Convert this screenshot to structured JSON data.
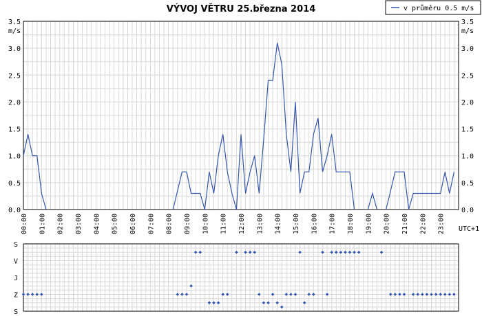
{
  "chart_data": [
    {
      "type": "line",
      "title": "VÝVOJ VĚTRU  25.března 2014",
      "ylabel": "m/s",
      "xlabel": "UTC+1",
      "ylim": [
        0,
        3.5
      ],
      "yticks": [
        "0.0",
        "0.5",
        "1.0",
        "1.5",
        "2.0",
        "2.5",
        "3.0",
        "3.5"
      ],
      "xticks": [
        "00:00",
        "01:00",
        "02:00",
        "03:00",
        "04:00",
        "05:00",
        "06:00",
        "07:00",
        "08:00",
        "09:00",
        "10:00",
        "11:00",
        "12:00",
        "13:00",
        "14:00",
        "15:00",
        "16:00",
        "17:00",
        "18:00",
        "19:00",
        "20:00",
        "21:00",
        "22:00",
        "23:00"
      ],
      "grid": true,
      "legend_position": "top-right",
      "series": [
        {
          "name": "v průměru 0.5 m/s",
          "color": "#3355aa",
          "points": [
            [
              0.0,
              1.0
            ],
            [
              0.25,
              1.4
            ],
            [
              0.5,
              1.0
            ],
            [
              0.75,
              1.0
            ],
            [
              1.0,
              0.3
            ],
            [
              1.25,
              0.0
            ],
            [
              8.25,
              0.0
            ],
            [
              8.5,
              0.35
            ],
            [
              8.75,
              0.7
            ],
            [
              9.0,
              0.7
            ],
            [
              9.25,
              0.3
            ],
            [
              9.5,
              0.3
            ],
            [
              9.75,
              0.3
            ],
            [
              10.0,
              0.0
            ],
            [
              10.25,
              0.7
            ],
            [
              10.5,
              0.3
            ],
            [
              10.75,
              1.0
            ],
            [
              11.0,
              1.4
            ],
            [
              11.25,
              0.7
            ],
            [
              11.5,
              0.3
            ],
            [
              11.75,
              0.0
            ],
            [
              12.0,
              1.4
            ],
            [
              12.25,
              0.3
            ],
            [
              12.5,
              0.7
            ],
            [
              12.75,
              1.0
            ],
            [
              13.0,
              0.3
            ],
            [
              13.25,
              1.3
            ],
            [
              13.5,
              2.4
            ],
            [
              13.75,
              2.4
            ],
            [
              14.0,
              3.1
            ],
            [
              14.25,
              2.7
            ],
            [
              14.5,
              1.4
            ],
            [
              14.75,
              0.7
            ],
            [
              15.0,
              2.0
            ],
            [
              15.25,
              0.3
            ],
            [
              15.5,
              0.7
            ],
            [
              15.75,
              0.7
            ],
            [
              16.0,
              1.4
            ],
            [
              16.25,
              1.7
            ],
            [
              16.5,
              0.7
            ],
            [
              16.75,
              1.0
            ],
            [
              17.0,
              1.4
            ],
            [
              17.25,
              0.7
            ],
            [
              17.5,
              0.7
            ],
            [
              17.75,
              0.7
            ],
            [
              18.0,
              0.7
            ],
            [
              18.25,
              0.0
            ],
            [
              19.0,
              0.0
            ],
            [
              19.25,
              0.3
            ],
            [
              19.5,
              0.0
            ],
            [
              20.0,
              0.0
            ],
            [
              20.25,
              0.35
            ],
            [
              20.5,
              0.7
            ],
            [
              20.75,
              0.7
            ],
            [
              21.0,
              0.7
            ],
            [
              21.25,
              0.0
            ],
            [
              21.5,
              0.3
            ],
            [
              21.75,
              0.3
            ],
            [
              22.0,
              0.3
            ],
            [
              22.25,
              0.3
            ],
            [
              22.5,
              0.3
            ],
            [
              22.75,
              0.3
            ],
            [
              23.0,
              0.3
            ],
            [
              23.25,
              0.7
            ],
            [
              23.5,
              0.3
            ],
            [
              23.75,
              0.7
            ]
          ]
        }
      ]
    },
    {
      "type": "scatter",
      "title": "",
      "xlabel": "",
      "ylabel": "",
      "ycategories": [
        "S",
        "V",
        "J",
        "Z",
        "S"
      ],
      "grid": true,
      "series": [
        {
          "color": "#3355aa",
          "points": [
            [
              0.0,
              "Z"
            ],
            [
              0.25,
              "Z"
            ],
            [
              0.5,
              "Z"
            ],
            [
              0.75,
              "Z"
            ],
            [
              1.0,
              "Z"
            ],
            [
              8.5,
              "Z"
            ],
            [
              8.75,
              "Z"
            ],
            [
              9.0,
              "Z"
            ],
            [
              9.25,
              "JZ"
            ],
            [
              9.5,
              "SV"
            ],
            [
              9.75,
              "SV"
            ],
            [
              10.25,
              "SZ"
            ],
            [
              10.5,
              "SZ"
            ],
            [
              10.75,
              "SZ"
            ],
            [
              11.0,
              "Z"
            ],
            [
              11.25,
              "Z"
            ],
            [
              11.75,
              "SV"
            ],
            [
              12.25,
              "SV"
            ],
            [
              12.5,
              "SV"
            ],
            [
              12.75,
              "SV"
            ],
            [
              13.0,
              "Z"
            ],
            [
              13.25,
              "SZ"
            ],
            [
              13.5,
              "SZ"
            ],
            [
              13.75,
              "Z"
            ],
            [
              14.0,
              "SZ"
            ],
            [
              14.25,
              "SSZ"
            ],
            [
              14.5,
              "Z"
            ],
            [
              14.75,
              "Z"
            ],
            [
              15.0,
              "Z"
            ],
            [
              15.25,
              "SV"
            ],
            [
              15.5,
              "SZ"
            ],
            [
              15.75,
              "Z"
            ],
            [
              16.0,
              "Z"
            ],
            [
              16.5,
              "SV"
            ],
            [
              16.75,
              "Z"
            ],
            [
              17.0,
              "SV"
            ],
            [
              17.25,
              "SV"
            ],
            [
              17.5,
              "SV"
            ],
            [
              17.75,
              "SV"
            ],
            [
              18.0,
              "SV"
            ],
            [
              18.25,
              "SV"
            ],
            [
              18.5,
              "SV"
            ],
            [
              19.75,
              "SV"
            ],
            [
              20.25,
              "Z"
            ],
            [
              20.5,
              "Z"
            ],
            [
              20.75,
              "Z"
            ],
            [
              21.0,
              "Z"
            ],
            [
              21.5,
              "Z"
            ],
            [
              21.75,
              "Z"
            ],
            [
              22.0,
              "Z"
            ],
            [
              22.25,
              "Z"
            ],
            [
              22.5,
              "Z"
            ],
            [
              22.75,
              "Z"
            ],
            [
              23.0,
              "Z"
            ],
            [
              23.25,
              "Z"
            ],
            [
              23.5,
              "Z"
            ],
            [
              23.75,
              "Z"
            ]
          ]
        }
      ]
    }
  ]
}
